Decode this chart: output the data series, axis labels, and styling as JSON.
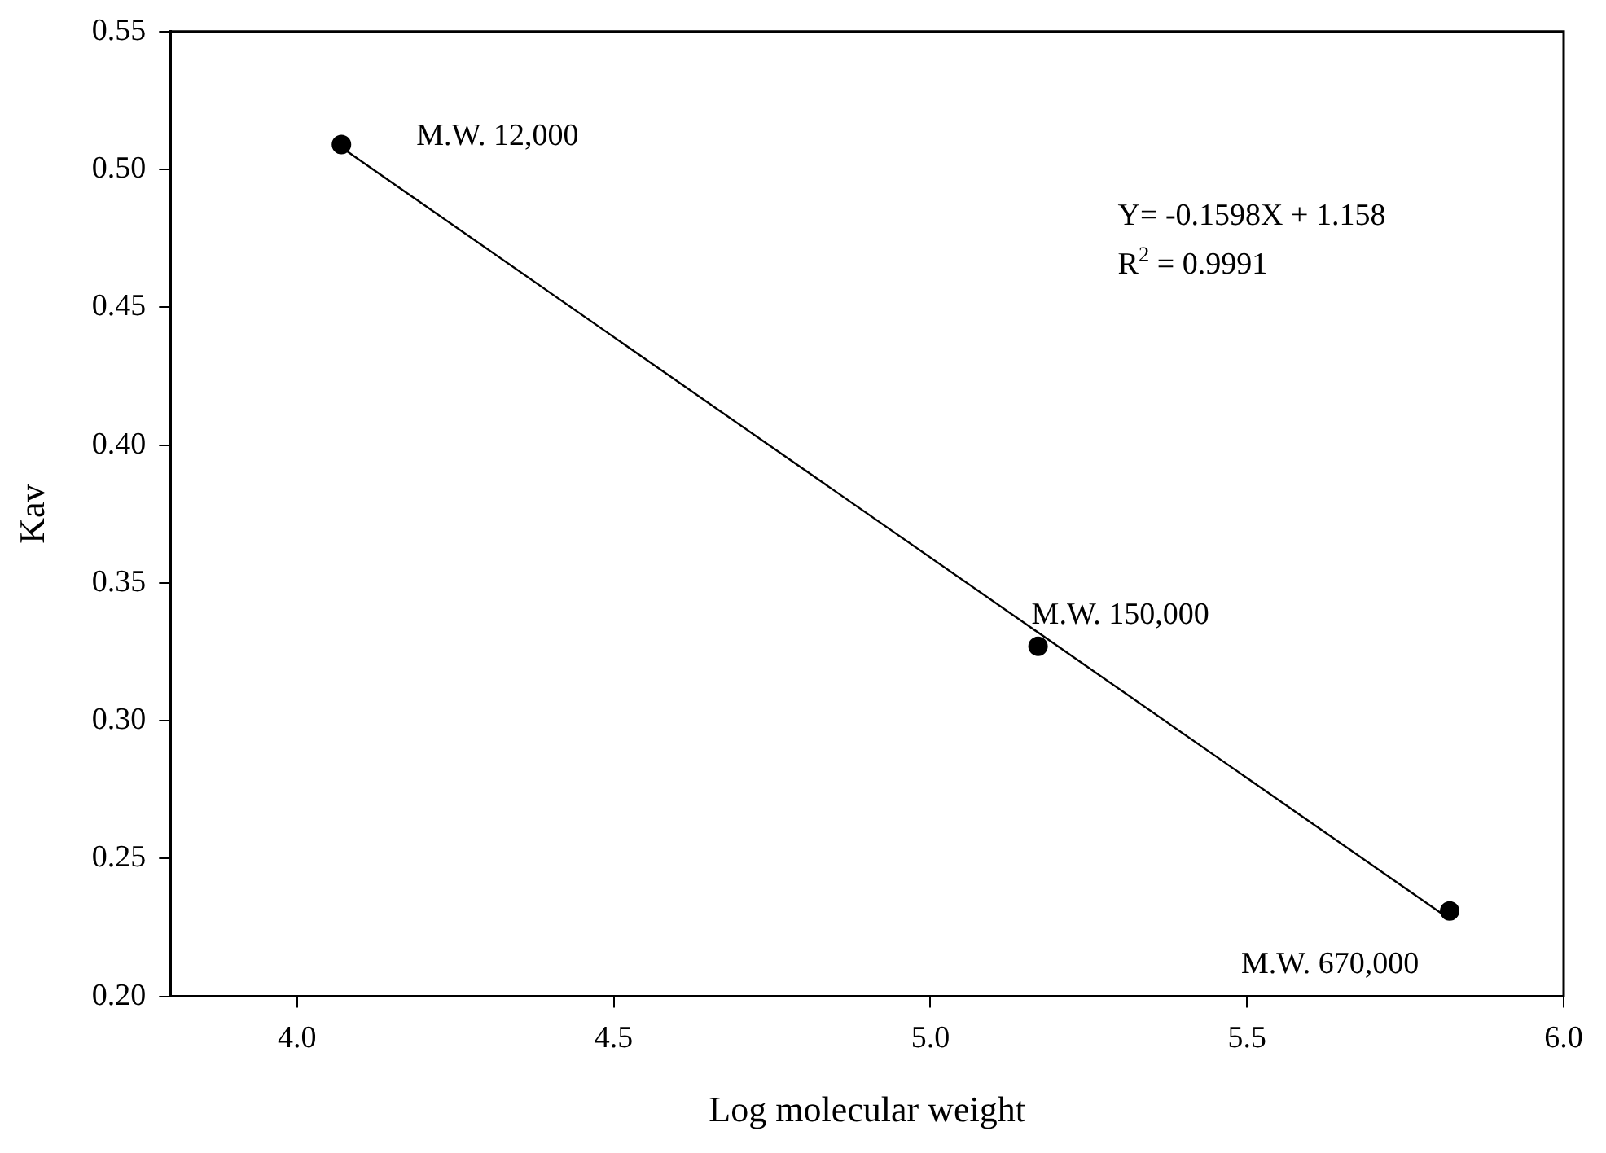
{
  "chart_data": {
    "type": "scatter",
    "xlabel": "Log molecular weight",
    "ylabel": "Kav",
    "xlim": [
      3.8,
      6.0
    ],
    "xticks": [
      {
        "value": 4.0,
        "label": "4.0"
      },
      {
        "value": 4.5,
        "label": "4.5"
      },
      {
        "value": 5.0,
        "label": "5.0"
      },
      {
        "value": 5.5,
        "label": "5.5"
      },
      {
        "value": 6.0,
        "label": "6.0"
      }
    ],
    "ylim": [
      0.2,
      0.55
    ],
    "yticks": [
      {
        "value": 0.2,
        "label": "0.20"
      },
      {
        "value": 0.25,
        "label": "0.25"
      },
      {
        "value": 0.3,
        "label": "0.30"
      },
      {
        "value": 0.35,
        "label": "0.35"
      },
      {
        "value": 0.4,
        "label": "0.40"
      },
      {
        "value": 0.45,
        "label": "0.45"
      },
      {
        "value": 0.5,
        "label": "0.50"
      },
      {
        "value": 0.55,
        "label": "0.55"
      }
    ],
    "grid": false,
    "legend": false,
    "series": [
      {
        "color": "#000000",
        "marker": "circle",
        "x": [
          4.07,
          5.17,
          5.82
        ],
        "values": [
          0.509,
          0.327,
          0.231
        ]
      },
      {
        "type": "line",
        "color": "#000000",
        "marker": "none",
        "line_style": "solid",
        "x": [
          4.07,
          5.82
        ],
        "values": [
          0.508,
          0.228
        ]
      }
    ],
    "annotations": [
      {
        "text": "M.W. 12,000",
        "x": 4.07,
        "y": 0.509
      },
      {
        "text": "M.W. 150,000",
        "x": 5.17,
        "y": 0.327
      },
      {
        "text": "M.W. 670,000",
        "x": 5.82,
        "y": 0.231
      },
      "Y= -0.1598X + 1.158",
      "R$^{2}$ = 0.9991"
    ]
  }
}
